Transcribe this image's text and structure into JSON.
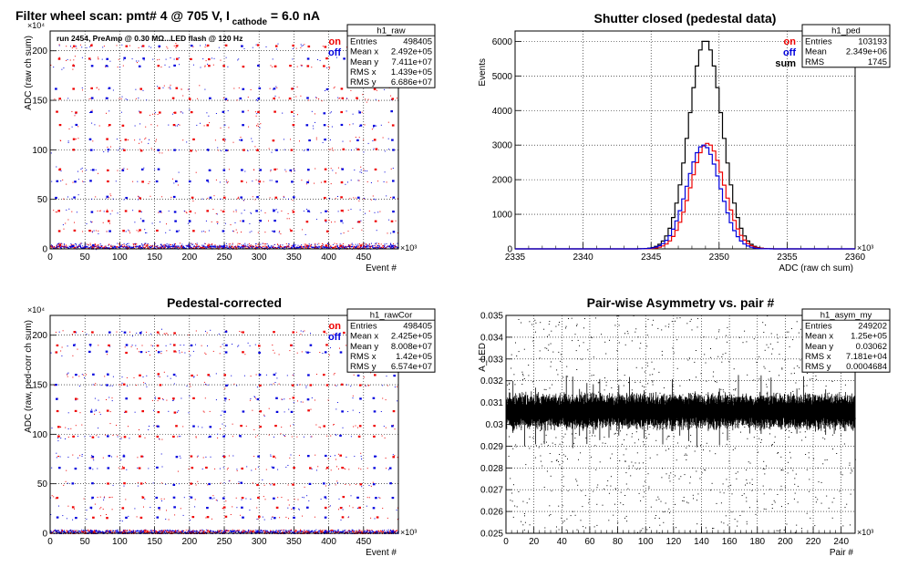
{
  "chart_data": [
    {
      "type": "scatter",
      "title": "Filter wheel scan: pmt#   4 @   705 V, I",
      "title_sub": "cathode",
      "title_tail": " = 6.0 nA",
      "annotation": "run 2454, PreAmp @ 0.30 MΩ...LED flash @  120 Hz",
      "xlabel": "Event #",
      "ylabel": "ADC (raw ch sum)",
      "x_exponent": "×10³",
      "y_exponent": "×10⁴",
      "xlim": [
        0,
        500
      ],
      "ylim": [
        0,
        220
      ],
      "xticks": [
        0,
        50,
        100,
        150,
        200,
        250,
        300,
        350,
        400,
        450
      ],
      "yticks": [
        0,
        50,
        100,
        150,
        200
      ],
      "legend": [
        {
          "label": "on",
          "color": "#ee0000"
        },
        {
          "label": "off",
          "color": "#0000dd"
        }
      ],
      "levels": [
        3,
        18,
        28,
        38,
        52,
        68,
        80,
        100,
        110,
        125,
        138,
        152,
        162,
        185,
        192,
        205
      ],
      "stats": {
        "name": "h1_raw",
        "rows": [
          [
            "Entries",
            "498405"
          ],
          [
            "Mean x",
            "2.492e+05"
          ],
          [
            "Mean y",
            "7.411e+07"
          ],
          [
            "RMS x",
            "1.439e+05"
          ],
          [
            "RMS y",
            "6.686e+07"
          ]
        ]
      }
    },
    {
      "type": "line",
      "title": "Shutter closed (pedestal data)",
      "xlabel": "ADC (raw ch sum)",
      "ylabel": "Events",
      "x_exponent": "×10³",
      "xlim": [
        2335,
        2360
      ],
      "ylim": [
        0,
        6300
      ],
      "xticks": [
        2335,
        2340,
        2345,
        2350,
        2355,
        2360
      ],
      "yticks": [
        0,
        1000,
        2000,
        3000,
        4000,
        5000,
        6000
      ],
      "legend": [
        {
          "label": "on",
          "color": "#ee0000"
        },
        {
          "label": "off",
          "color": "#0000dd"
        },
        {
          "label": "sum",
          "color": "#000000"
        }
      ],
      "series": [
        {
          "name": "sum",
          "color": "#000000",
          "mean": 2349.0,
          "sigma": 1.22,
          "peak": 6030
        },
        {
          "name": "on",
          "color": "#ee0000",
          "mean": 2349.15,
          "sigma": 1.22,
          "peak": 3050
        },
        {
          "name": "off",
          "color": "#0000dd",
          "mean": 2348.85,
          "sigma": 1.22,
          "peak": 3000
        }
      ],
      "stats": {
        "name": "h1_ped",
        "rows": [
          [
            "Entries",
            "103193"
          ],
          [
            "Mean",
            "2.349e+06"
          ],
          [
            "RMS",
            "1745"
          ]
        ]
      }
    },
    {
      "type": "scatter",
      "title": "Pedestal-corrected",
      "xlabel": "Event #",
      "ylabel": "ADC (raw, ped-corr ch sum)",
      "x_exponent": "×10³",
      "y_exponent": "×10⁴",
      "xlim": [
        0,
        500
      ],
      "ylim": [
        0,
        220
      ],
      "xticks": [
        0,
        50,
        100,
        150,
        200,
        250,
        300,
        350,
        400,
        450
      ],
      "yticks": [
        0,
        50,
        100,
        150,
        200
      ],
      "legend": [
        {
          "label": "on",
          "color": "#ee0000"
        },
        {
          "label": "off",
          "color": "#0000dd"
        }
      ],
      "levels": [
        3,
        18,
        28,
        38,
        52,
        68,
        80,
        100,
        110,
        125,
        138,
        152,
        162,
        185,
        192,
        205
      ],
      "stats": {
        "name": "h1_rawCor",
        "rows": [
          [
            "Entries",
            "498405"
          ],
          [
            "Mean x",
            "2.425e+05"
          ],
          [
            "Mean y",
            "8.008e+07"
          ],
          [
            "RMS x",
            "1.42e+05"
          ],
          [
            "RMS y",
            "6.574e+07"
          ]
        ]
      }
    },
    {
      "type": "scatter",
      "title": "Pair-wise Asymmetry vs. pair #",
      "xlabel": "Pair #",
      "ylabel": "A_LED",
      "x_exponent": "×10³",
      "xlim": [
        0,
        250
      ],
      "ylim": [
        0.025,
        0.035
      ],
      "xticks": [
        0,
        20,
        40,
        60,
        80,
        100,
        120,
        140,
        160,
        180,
        200,
        220,
        240
      ],
      "yticks": [
        0.025,
        0.026,
        0.027,
        0.028,
        0.029,
        0.03,
        0.031,
        0.032,
        0.033,
        0.034,
        0.035
      ],
      "band_center": 0.0306,
      "band_halfwidth": 0.0006,
      "stats": {
        "name": "h1_asym_my",
        "rows": [
          [
            "Entries",
            "249202"
          ],
          [
            "Mean x",
            "1.25e+05"
          ],
          [
            "Mean y",
            "0.03062"
          ],
          [
            "RMS x",
            "7.181e+04"
          ],
          [
            "RMS y",
            "0.0004684"
          ]
        ]
      }
    }
  ]
}
